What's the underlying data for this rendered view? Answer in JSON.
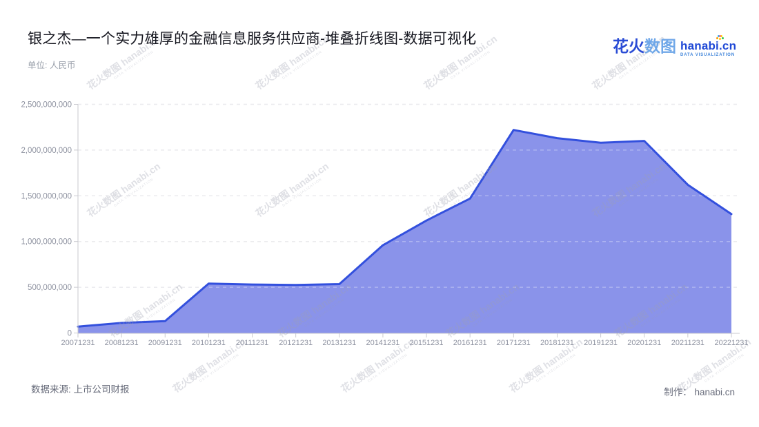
{
  "title": "银之杰—一个实力雄厚的金融信息服务供应商-堆叠折线图-数据可视化",
  "unit_label": "单位: 人民币",
  "logo": {
    "cjk_bold": "花火",
    "cjk_light": "数图",
    "latin": "hanabi.cn",
    "tagline": "DATA VISUALIZATION"
  },
  "footer": {
    "source": "数据来源: 上市公司财报",
    "credit": "制作： hanabi.cn"
  },
  "watermark": {
    "text": "花火数图 hanabi.cn",
    "tagline": "DATA VISUALIZATION"
  },
  "colors": {
    "area_fill": "#8a93ea",
    "line": "#3350dd",
    "grid": "#e2e2e7",
    "grid_over_fill": "rgba(255,255,255,0.30)",
    "axis": "#c9c9cf",
    "tick_text": "#8e92a0",
    "title_text": "#15161f",
    "brand_blue": "#2a4cd5",
    "brand_light_blue": "#6fa7e8"
  },
  "chart_data": {
    "type": "area",
    "title": "银之杰—一个实力雄厚的金融信息服务供应商-堆叠折线图-数据可视化",
    "unit": "单位: 人民币",
    "x": [
      "20071231",
      "20081231",
      "20091231",
      "20101231",
      "20111231",
      "20121231",
      "20131231",
      "20141231",
      "20151231",
      "20161231",
      "20171231",
      "20181231",
      "20191231",
      "20201231",
      "20211231",
      "20221231"
    ],
    "series": [
      {
        "name": "银之杰",
        "values": [
          70000000,
          110000000,
          130000000,
          540000000,
          530000000,
          525000000,
          535000000,
          960000000,
          1230000000,
          1470000000,
          2220000000,
          2130000000,
          2080000000,
          2100000000,
          1620000000,
          1300000000
        ]
      }
    ],
    "ylim": [
      0,
      2500000000
    ],
    "ytick_interval": 500000000,
    "xlabel": "",
    "ylabel": "",
    "grid": "horizontal-dashed",
    "legend": "none"
  }
}
